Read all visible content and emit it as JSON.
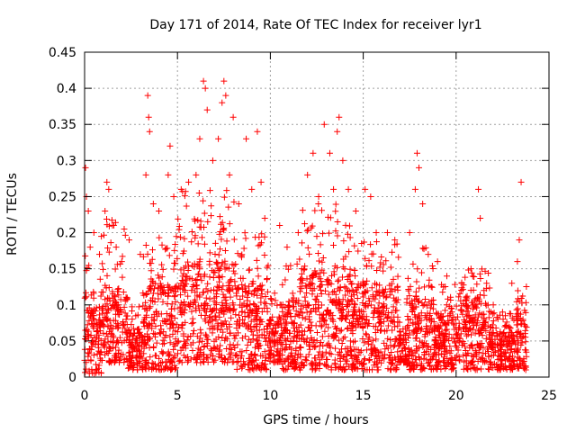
{
  "chart_data": {
    "type": "scatter",
    "title": "Day 171 of 2014, Rate Of TEC Index for receiver lyr1",
    "xlabel": "GPS time / hours",
    "ylabel": "ROTI / TECUs",
    "xlim": [
      0,
      25
    ],
    "ylim": [
      0,
      0.45
    ],
    "xticks": [
      0,
      5,
      10,
      15,
      20,
      25
    ],
    "xtick_labels": [
      "0",
      "5",
      "10",
      "15",
      "20",
      "25"
    ],
    "yticks": [
      0,
      0.05,
      0.1,
      0.15,
      0.2,
      0.25,
      0.3,
      0.35,
      0.4,
      0.45
    ],
    "ytick_labels": [
      "0",
      "0.05",
      "0.1",
      "0.15",
      "0.2",
      "0.25",
      "0.3",
      "0.35",
      "0.4",
      "0.45"
    ],
    "grid": true,
    "marker": "+",
    "color": "#ff0000",
    "x_data_range": [
      0,
      23.8
    ],
    "series": [
      {
        "name": "ROTI",
        "points": [
          [
            0.05,
            0.29
          ],
          [
            0.1,
            0.25
          ],
          [
            0.2,
            0.23
          ],
          [
            0.3,
            0.18
          ],
          [
            0.5,
            0.2
          ],
          [
            0.8,
            0.17
          ],
          [
            1.1,
            0.23
          ],
          [
            1.2,
            0.27
          ],
          [
            1.3,
            0.26
          ],
          [
            1.5,
            0.21
          ],
          [
            1.7,
            0.18
          ],
          [
            2.0,
            0.16
          ],
          [
            2.4,
            0.19
          ],
          [
            3.0,
            0.17
          ],
          [
            3.3,
            0.28
          ],
          [
            3.4,
            0.39
          ],
          [
            3.45,
            0.36
          ],
          [
            3.5,
            0.34
          ],
          [
            3.7,
            0.24
          ],
          [
            4.0,
            0.23
          ],
          [
            4.5,
            0.28
          ],
          [
            4.6,
            0.32
          ],
          [
            4.8,
            0.25
          ],
          [
            5.2,
            0.26
          ],
          [
            5.6,
            0.27
          ],
          [
            6.0,
            0.28
          ],
          [
            6.2,
            0.33
          ],
          [
            6.4,
            0.41
          ],
          [
            6.5,
            0.4
          ],
          [
            6.6,
            0.37
          ],
          [
            6.9,
            0.3
          ],
          [
            7.2,
            0.33
          ],
          [
            7.4,
            0.38
          ],
          [
            7.5,
            0.41
          ],
          [
            7.6,
            0.39
          ],
          [
            7.8,
            0.28
          ],
          [
            8.0,
            0.36
          ],
          [
            8.3,
            0.24
          ],
          [
            8.7,
            0.33
          ],
          [
            9.0,
            0.26
          ],
          [
            9.3,
            0.34
          ],
          [
            9.5,
            0.27
          ],
          [
            9.7,
            0.22
          ],
          [
            10.5,
            0.21
          ],
          [
            10.9,
            0.18
          ],
          [
            11.5,
            0.2
          ],
          [
            12.0,
            0.28
          ],
          [
            12.3,
            0.31
          ],
          [
            12.6,
            0.25
          ],
          [
            12.9,
            0.35
          ],
          [
            13.2,
            0.31
          ],
          [
            13.4,
            0.26
          ],
          [
            13.6,
            0.34
          ],
          [
            13.7,
            0.36
          ],
          [
            13.9,
            0.3
          ],
          [
            14.2,
            0.26
          ],
          [
            14.6,
            0.23
          ],
          [
            15.1,
            0.26
          ],
          [
            15.4,
            0.25
          ],
          [
            15.7,
            0.2
          ],
          [
            16.3,
            0.2
          ],
          [
            16.7,
            0.19
          ],
          [
            17.5,
            0.2
          ],
          [
            17.8,
            0.26
          ],
          [
            17.9,
            0.31
          ],
          [
            18.0,
            0.29
          ],
          [
            18.2,
            0.24
          ],
          [
            18.5,
            0.17
          ],
          [
            19.0,
            0.16
          ],
          [
            19.5,
            0.14
          ],
          [
            20.3,
            0.13
          ],
          [
            20.8,
            0.15
          ],
          [
            21.2,
            0.26
          ],
          [
            21.3,
            0.22
          ],
          [
            21.5,
            0.12
          ],
          [
            22.0,
            0.1
          ],
          [
            22.5,
            0.09
          ],
          [
            23.0,
            0.13
          ],
          [
            23.3,
            0.16
          ],
          [
            23.4,
            0.19
          ],
          [
            23.5,
            0.27
          ],
          [
            23.6,
            0.08
          ]
        ]
      }
    ],
    "activity_profile": [
      {
        "x": [
          0,
          0.9
        ],
        "low": 0.005,
        "mode": 0.05,
        "high": 0.17
      },
      {
        "x": [
          0.9,
          2.3
        ],
        "low": 0.02,
        "mode": 0.07,
        "high": 0.22
      },
      {
        "x": [
          2.3,
          3.1
        ],
        "low": 0.01,
        "mode": 0.04,
        "high": 0.1
      },
      {
        "x": [
          3.1,
          5.0
        ],
        "low": 0.01,
        "mode": 0.07,
        "high": 0.2
      },
      {
        "x": [
          5.0,
          8.2
        ],
        "low": 0.02,
        "mode": 0.09,
        "high": 0.26
      },
      {
        "x": [
          8.2,
          9.9
        ],
        "low": 0.01,
        "mode": 0.07,
        "high": 0.2
      },
      {
        "x": [
          9.9,
          10.6
        ],
        "low": 0.02,
        "mode": 0.05,
        "high": 0.12
      },
      {
        "x": [
          10.6,
          11.6
        ],
        "low": 0.01,
        "mode": 0.06,
        "high": 0.17
      },
      {
        "x": [
          11.6,
          14.3
        ],
        "low": 0.01,
        "mode": 0.08,
        "high": 0.24
      },
      {
        "x": [
          14.3,
          16.9
        ],
        "low": 0.01,
        "mode": 0.07,
        "high": 0.19
      },
      {
        "x": [
          16.9,
          17.3
        ],
        "low": 0.02,
        "mode": 0.04,
        "high": 0.08
      },
      {
        "x": [
          17.3,
          18.8
        ],
        "low": 0.01,
        "mode": 0.06,
        "high": 0.18
      },
      {
        "x": [
          18.8,
          20.2
        ],
        "low": 0.01,
        "mode": 0.05,
        "high": 0.13
      },
      {
        "x": [
          20.2,
          21.8
        ],
        "low": 0.01,
        "mode": 0.06,
        "high": 0.15
      },
      {
        "x": [
          21.8,
          23.0
        ],
        "low": 0.01,
        "mode": 0.04,
        "high": 0.09
      },
      {
        "x": [
          23.0,
          23.8
        ],
        "low": 0.01,
        "mode": 0.05,
        "high": 0.13
      }
    ]
  }
}
